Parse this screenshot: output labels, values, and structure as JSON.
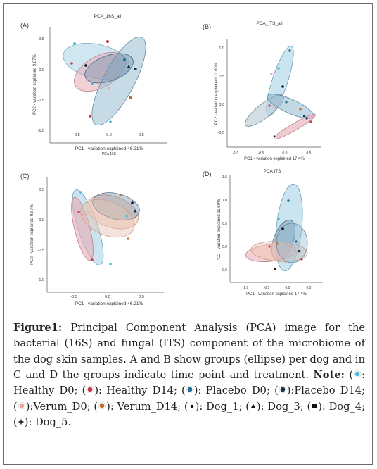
{
  "figure": {
    "panels": [
      {
        "id": "A",
        "letter": "(A)",
        "title": "PCA_16S_all",
        "xlabel": "PC1 - variation explained 46.21%",
        "xlabel2": "PCA 16S",
        "ylabel": "PC2 - variation explained 9.87%",
        "xticks": [
          "-0.5",
          "0.0",
          "0.5"
        ],
        "yticks": [
          "0.5",
          "0.0",
          "-0.5",
          "-1.0"
        ]
      },
      {
        "id": "B",
        "letter": "(B)",
        "title": "PCA_ITS_all",
        "xlabel": "PC1 - variation explained 17.4%",
        "ylabel": "PC2 - variation explained 11.60%",
        "xticks": [
          "-1.0",
          "-0.5",
          "0.0",
          "0.5"
        ],
        "yticks": [
          "1.0",
          "0.5",
          "0.0",
          "-0.5"
        ]
      },
      {
        "id": "C",
        "letter": "(C)",
        "title": "",
        "xlabel": "PC1 - variation explained 46.21%",
        "ylabel": "PC2 - variation explained 9.87%",
        "xticks": [
          "-0.5",
          "0.0",
          "0.5"
        ],
        "yticks": [
          "0.5",
          "0.0",
          "-0.5",
          "-1.0"
        ]
      },
      {
        "id": "D",
        "letter": "(D)",
        "title": "PCA ITS",
        "xlabel": "PC1 - variation explained 17.4%",
        "ylabel": "PC2 - variation explained 11.60%",
        "xticks": [
          "-1.0",
          "-0.5",
          "0.0",
          "0.5"
        ],
        "yticks": [
          "1.5",
          "1.0",
          "0.5",
          "0.0",
          "-0.5"
        ]
      }
    ]
  },
  "colors": {
    "healthy_d0": "#4db8e0",
    "healthy_d14": "#c8384a",
    "placebo_d0": "#1e6f93",
    "placebo_d14": "#0f3550",
    "verum_d0": "#e8a49a",
    "verum_d14": "#c8692a",
    "ellipse_blue": "#a9d4e6",
    "ellipse_pink": "#e6aab4",
    "ellipse_navy": "#6e8ca6",
    "ellipse_peach": "#f0c8b4"
  },
  "caption": {
    "label": "Figure1:",
    "body": " Principal Component Analysis (PCA) image for the bacterial (16S) and fungal (ITS) component of the microbiome of the dog skin samples. A and B show groups (ellipse) per dog and in C and D the groups indicate time point and treatment. ",
    "note_label": "Note:",
    "items": [
      {
        "glyph": "circle",
        "color": "#4db8e0",
        "text": ": Healthy_D0; "
      },
      {
        "glyph": "circle",
        "color": "#c8384a",
        "text": ": Healthy_D14; "
      },
      {
        "glyph": "circle",
        "color": "#1e6f93",
        "text": ": Placebo_D0; "
      },
      {
        "glyph": "circle",
        "color": "#0f3550",
        "text": ":Placebo_D14; "
      },
      {
        "glyph": "circle",
        "color": "#e8a49a",
        "text": ":Verum_D0; "
      },
      {
        "glyph": "circle",
        "color": "#c8692a",
        "text": ": Verum_D14; "
      },
      {
        "glyph": "dot",
        "color": "#111111",
        "text": ": Dog_1; "
      },
      {
        "glyph": "triangle",
        "color": "#111111",
        "text": ": Dog_3; "
      },
      {
        "glyph": "square",
        "color": "#111111",
        "text": ": Dog_4; "
      },
      {
        "glyph": "plus",
        "color": "#111111",
        "text": ": Dog_5."
      }
    ]
  }
}
